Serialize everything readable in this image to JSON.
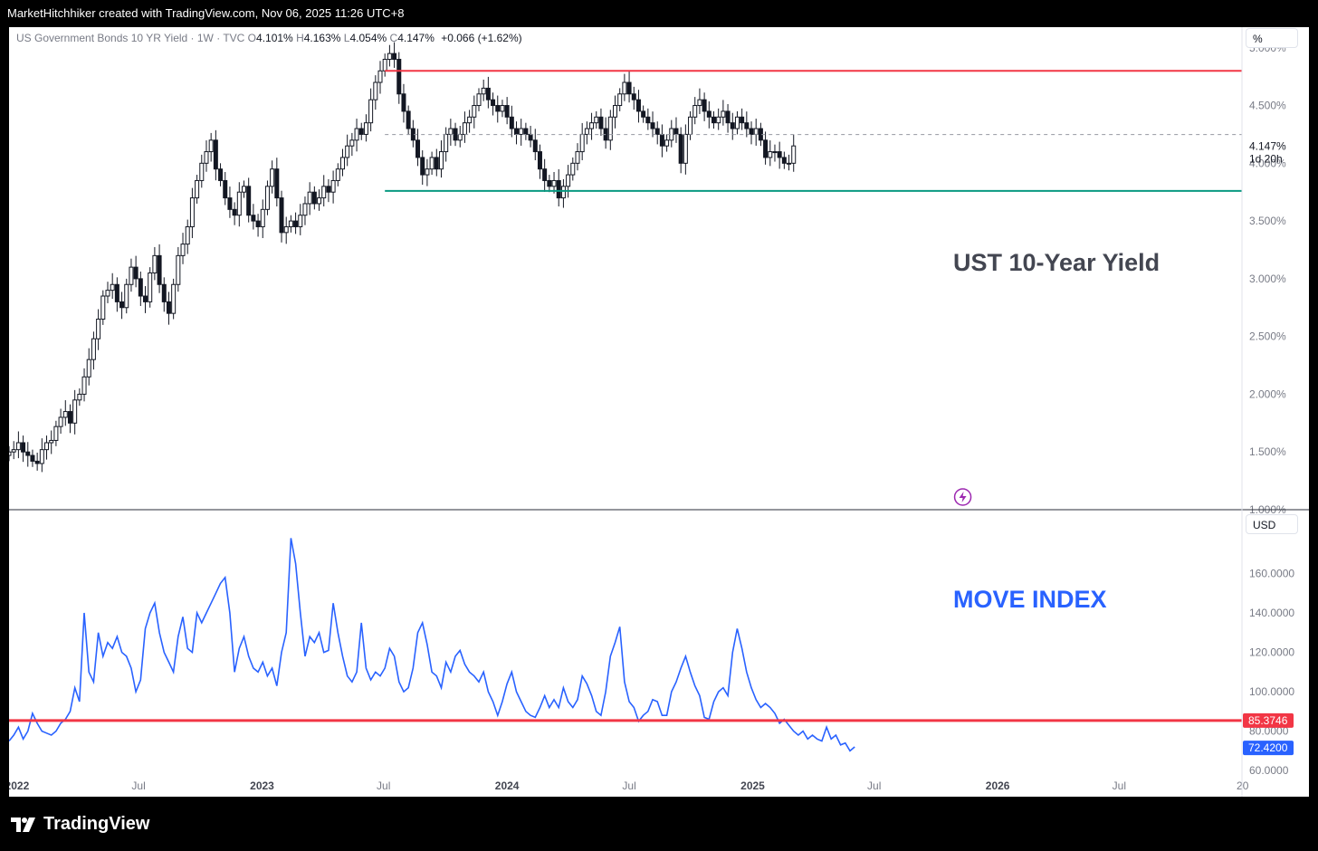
{
  "header": {
    "attribution": "MarketHitchhiker created with TradingView.com, Nov 06, 2025 11:26 UTC+8"
  },
  "legend": {
    "symbol": "US Government Bonds 10 YR Yield · 1W · TVC",
    "o_label": "O",
    "o_value": "4.101%",
    "h_label": "H",
    "h_value": "4.163%",
    "l_label": "L",
    "l_value": "4.054%",
    "c_label": "C",
    "c_value": "4.147%",
    "change": "+0.066 (+1.62%)"
  },
  "price_pane": {
    "unit": "%",
    "annotation": "UST 10-Year Yield",
    "last_price": "4.147%",
    "countdown": "1d 20h"
  },
  "move_pane": {
    "unit": "USD",
    "annotation": "MOVE INDEX",
    "hline_label": "85.3746",
    "last_label": "72.4200"
  },
  "footer": {
    "brand": "TradingView"
  },
  "colors": {
    "resistance": "#f23645",
    "support": "#089981",
    "move_line": "#2962ff",
    "last_price_badge": "#2962ff",
    "hline_badge": "#f23645",
    "candle": "#131722"
  },
  "chart_data": [
    {
      "type": "candlestick",
      "title": "US Government Bonds 10 YR Yield · 1W · TVC",
      "x_axis": {
        "ticks": [
          "2022",
          "Jul",
          "2023",
          "Jul",
          "2024",
          "Jul",
          "2025",
          "Jul",
          "2026",
          "Jul",
          "20"
        ],
        "range": [
          "2021-12-20",
          "2026-12-31"
        ]
      },
      "y_axis": {
        "unit": "%",
        "ticks": [
          "1.000%",
          "1.500%",
          "2.000%",
          "2.500%",
          "3.000%",
          "3.500%",
          "4.000%",
          "4.500%",
          "5.000%"
        ],
        "range": [
          1.0,
          5.1
        ]
      },
      "weekly_close_approx": {
        "start": "2021-12-20",
        "step": "1W",
        "values": [
          1.5,
          1.52,
          1.58,
          1.5,
          1.47,
          1.42,
          1.4,
          1.52,
          1.58,
          1.6,
          1.72,
          1.8,
          1.85,
          1.75,
          1.95,
          2.0,
          2.15,
          2.3,
          2.48,
          2.65,
          2.85,
          2.9,
          2.95,
          2.8,
          2.75,
          2.95,
          3.1,
          3.0,
          2.85,
          2.8,
          3.05,
          3.2,
          2.95,
          2.8,
          2.7,
          2.95,
          3.2,
          3.3,
          3.45,
          3.7,
          3.85,
          4.0,
          4.1,
          4.2,
          3.95,
          3.85,
          3.7,
          3.6,
          3.55,
          3.75,
          3.8,
          3.55,
          3.5,
          3.45,
          3.6,
          3.8,
          3.95,
          3.7,
          3.4,
          3.45,
          3.5,
          3.45,
          3.55,
          3.65,
          3.75,
          3.65,
          3.7,
          3.8,
          3.75,
          3.85,
          3.95,
          4.05,
          4.15,
          4.2,
          4.3,
          4.25,
          4.35,
          4.55,
          4.7,
          4.8,
          4.9,
          4.95,
          4.9,
          4.6,
          4.45,
          4.3,
          4.2,
          4.05,
          3.9,
          3.95,
          4.05,
          3.95,
          4.1,
          4.25,
          4.3,
          4.2,
          4.25,
          4.35,
          4.4,
          4.5,
          4.6,
          4.65,
          4.55,
          4.5,
          4.45,
          4.5,
          4.4,
          4.3,
          4.25,
          4.3,
          4.25,
          4.2,
          4.1,
          3.95,
          3.85,
          3.8,
          3.85,
          3.7,
          3.8,
          3.9,
          4.0,
          4.1,
          4.25,
          4.3,
          4.35,
          4.4,
          4.3,
          4.2,
          4.4,
          4.5,
          4.6,
          4.7,
          4.6,
          4.55,
          4.45,
          4.4,
          4.35,
          4.3,
          4.25,
          4.15,
          4.2,
          4.3,
          4.25,
          4.0,
          4.25,
          4.4,
          4.5,
          4.55,
          4.45,
          4.4,
          4.35,
          4.4,
          4.45,
          4.35,
          4.3,
          4.4,
          4.35,
          4.3,
          4.25,
          4.3,
          4.2,
          4.05,
          4.1,
          4.1,
          4.05,
          4.0,
          4.0,
          4.15
        ]
      },
      "horizontal_lines": [
        {
          "name": "resistance",
          "value": 4.8,
          "color": "#f23645"
        },
        {
          "name": "support",
          "value": 3.76,
          "color": "#089981"
        }
      ],
      "annotation": "UST 10-Year Yield",
      "last_value": 4.147
    },
    {
      "type": "line",
      "title": "MOVE INDEX",
      "y_axis": {
        "unit": "USD",
        "ticks": [
          "60.0000",
          "80.0000",
          "100.0000",
          "120.0000",
          "140.0000",
          "160.0000"
        ],
        "range": [
          55,
          180
        ]
      },
      "series": [
        {
          "name": "MOVE INDEX",
          "start": "2021-12-20",
          "step": "1W",
          "values": [
            75,
            78,
            82,
            76,
            80,
            89,
            84,
            80,
            79,
            78,
            80,
            84,
            86,
            90,
            102,
            95,
            140,
            110,
            105,
            130,
            118,
            125,
            122,
            128,
            120,
            118,
            112,
            100,
            106,
            132,
            140,
            145,
            130,
            120,
            115,
            110,
            128,
            138,
            122,
            120,
            140,
            135,
            140,
            145,
            150,
            155,
            158,
            140,
            110,
            122,
            128,
            118,
            112,
            110,
            115,
            108,
            112,
            103,
            120,
            130,
            178,
            165,
            140,
            118,
            128,
            125,
            130,
            120,
            121,
            145,
            130,
            118,
            108,
            105,
            110,
            135,
            112,
            106,
            110,
            108,
            112,
            122,
            118,
            105,
            100,
            102,
            112,
            130,
            135,
            124,
            110,
            108,
            102,
            115,
            110,
            118,
            121,
            114,
            110,
            108,
            105,
            110,
            100,
            95,
            88,
            95,
            104,
            110,
            100,
            95,
            90,
            88,
            87,
            92,
            98,
            92,
            96,
            92,
            102,
            95,
            92,
            96,
            108,
            104,
            98,
            90,
            88,
            100,
            118,
            125,
            133,
            105,
            95,
            92,
            85,
            88,
            90,
            96,
            95,
            88,
            88,
            100,
            105,
            112,
            118,
            110,
            103,
            98,
            87,
            86,
            95,
            100,
            102,
            98,
            120,
            132,
            122,
            110,
            102,
            96,
            92,
            94,
            92,
            89,
            84,
            86,
            83,
            80,
            78,
            80,
            76,
            78,
            76,
            75,
            82,
            76,
            78,
            73,
            74,
            70,
            72
          ]
        }
      ],
      "horizontal_lines": [
        {
          "name": "threshold",
          "value": 85.3746,
          "color": "#f23645"
        }
      ],
      "last_value": 72.42
    }
  ]
}
